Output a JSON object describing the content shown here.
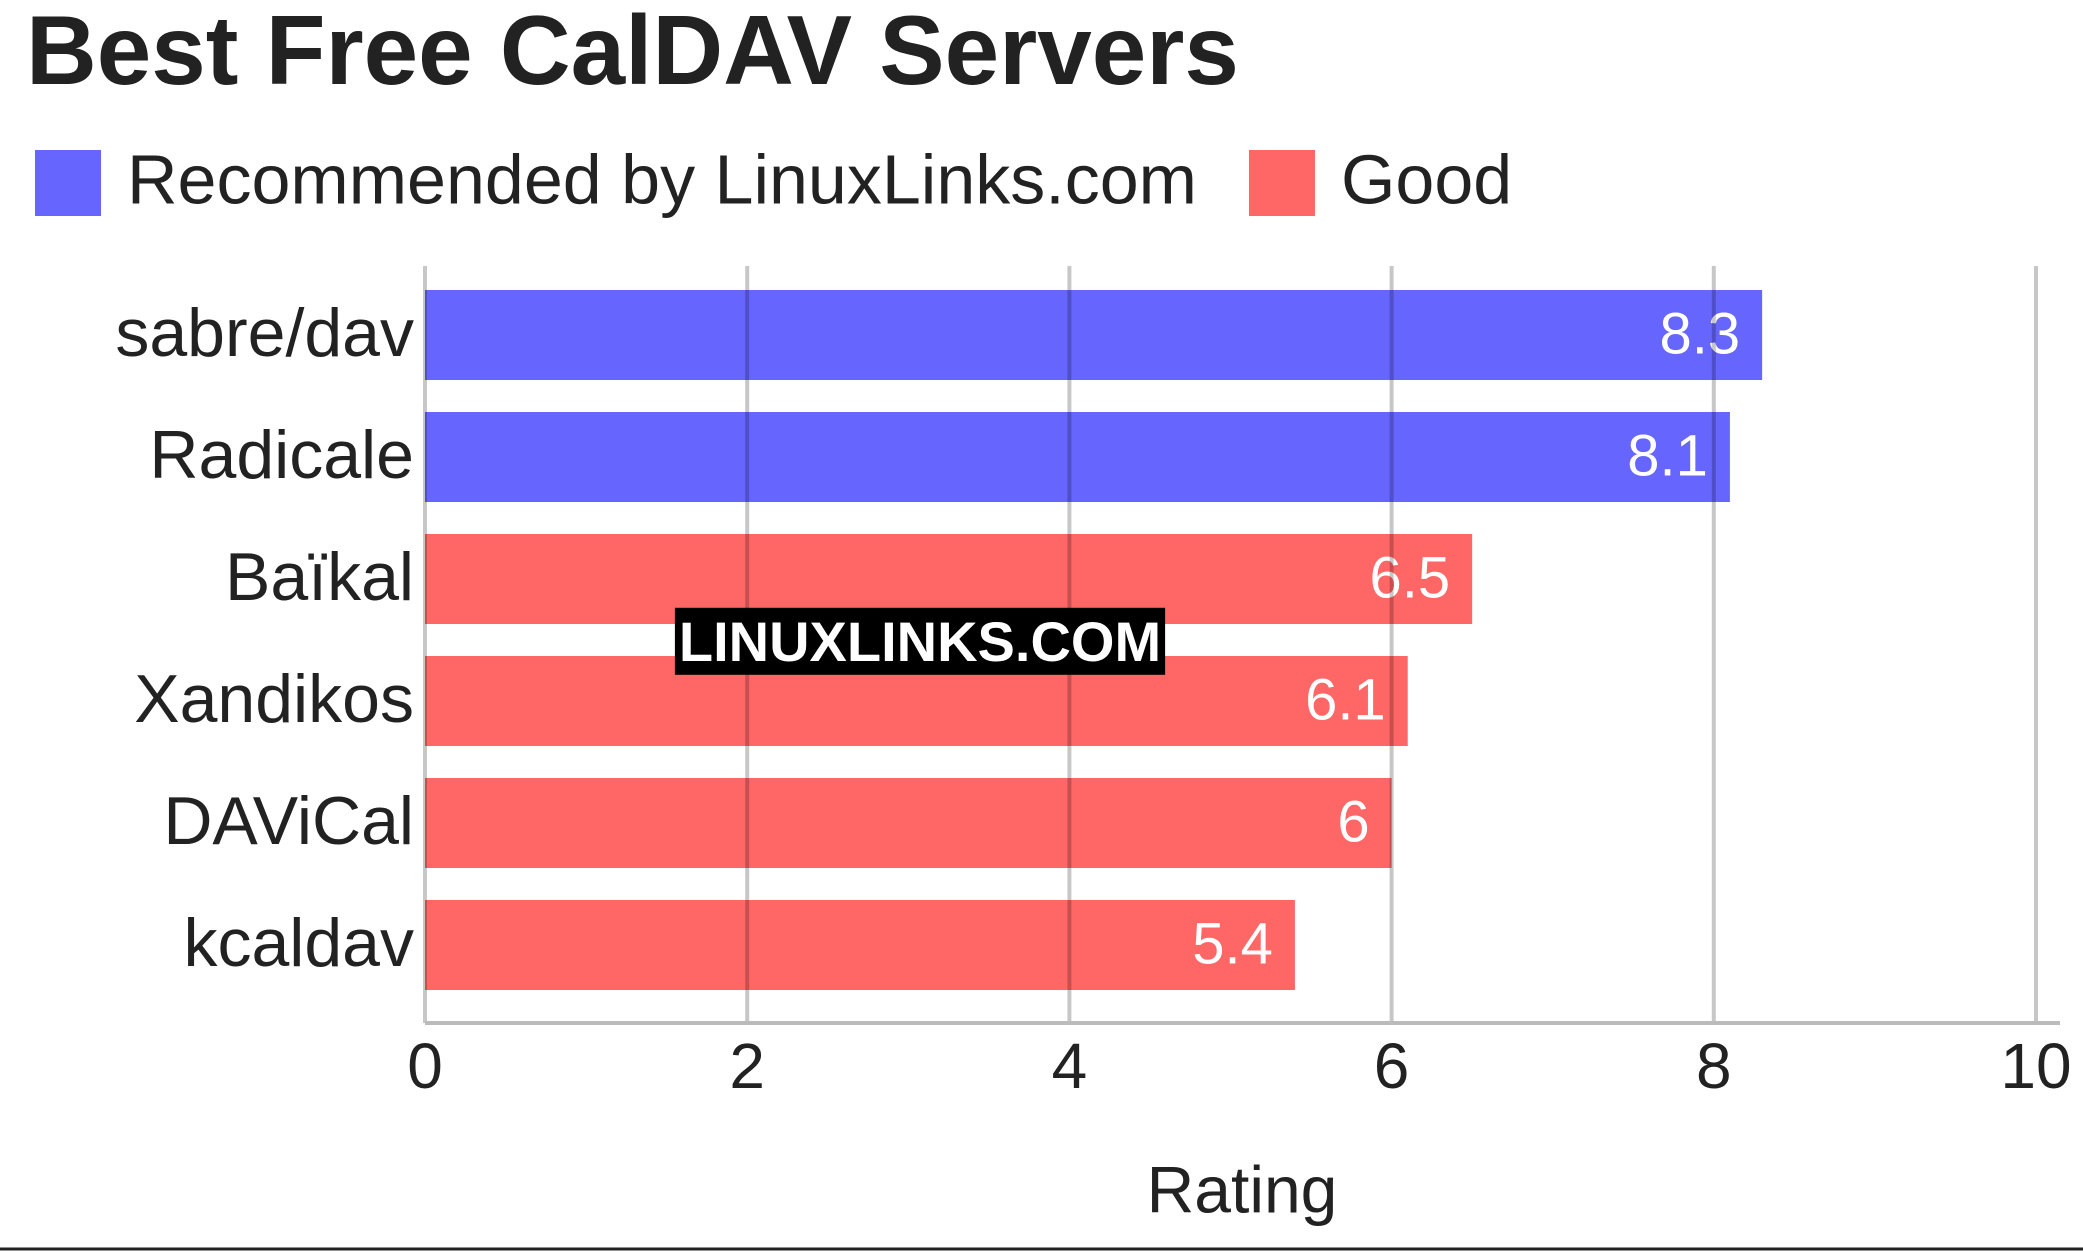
{
  "chart_data": {
    "type": "hbar",
    "title": "Best Free CalDAV Servers",
    "categories": [
      "sabre/dav",
      "Radicale",
      "Baïkal",
      "Xandikos",
      "DAViCal",
      "kcaldav"
    ],
    "series": [
      {
        "name": "Recommended by LinuxLinks.com",
        "color": "#6666ff",
        "values": [
          8.3,
          8.1,
          null,
          null,
          null,
          null
        ]
      },
      {
        "name": "Good",
        "color": "#ff6666",
        "values": [
          null,
          null,
          6.5,
          6.1,
          6,
          5.4
        ]
      }
    ],
    "xlim": [
      0,
      10
    ],
    "xticks": [
      0,
      2,
      4,
      6,
      8,
      10
    ],
    "x_label": "Rating",
    "grid": true,
    "legend": "top-left",
    "watermark": "LINUXLINKS.COM"
  }
}
